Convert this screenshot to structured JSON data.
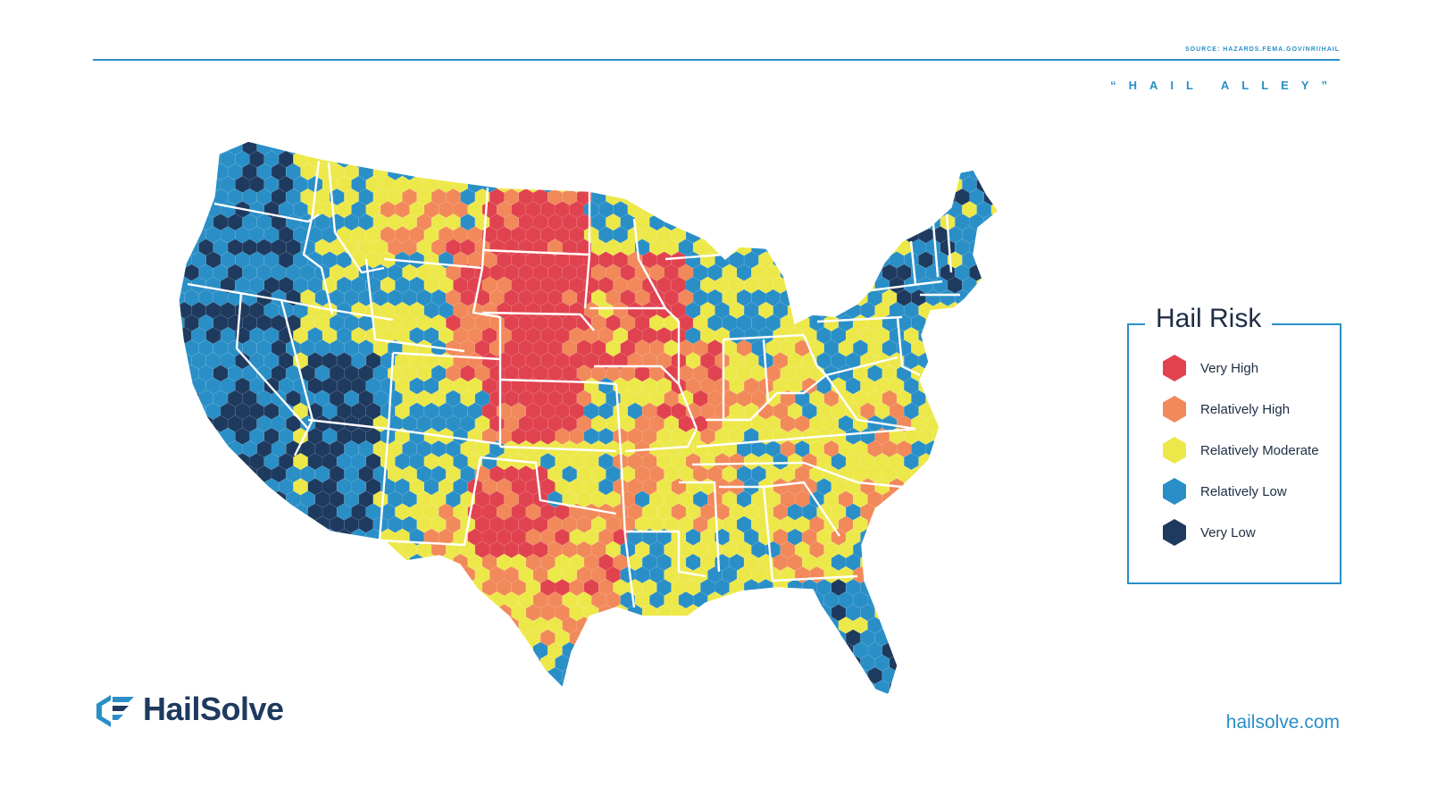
{
  "header": {
    "source": "SOURCE: HAZARDS.FEMA.GOV/NRI/HAIL",
    "subtitle": "“HAIL ALLEY”"
  },
  "legend": {
    "title": "Hail Risk",
    "items": [
      {
        "label": "Very High",
        "color": "#e0434f"
      },
      {
        "label": "Relatively High",
        "color": "#f2895a"
      },
      {
        "label": "Relatively Moderate",
        "color": "#ede84a"
      },
      {
        "label": "Relatively Low",
        "color": "#2a8fc7"
      },
      {
        "label": "Very Low",
        "color": "#1e3a5f"
      }
    ]
  },
  "brand": {
    "logo_text": "HailSolve",
    "logo_icon": "hailsolve-logo-icon",
    "website": "hailsolve.com"
  },
  "map": {
    "subject": "Contiguous United States hexagonal hail risk map",
    "colors": {
      "very_high": "#e0434f",
      "relatively_high": "#f2895a",
      "relatively_moderate": "#ede84a",
      "relatively_low": "#2a8fc7",
      "very_low": "#1e3a5f",
      "state_border": "#ffffff"
    }
  }
}
